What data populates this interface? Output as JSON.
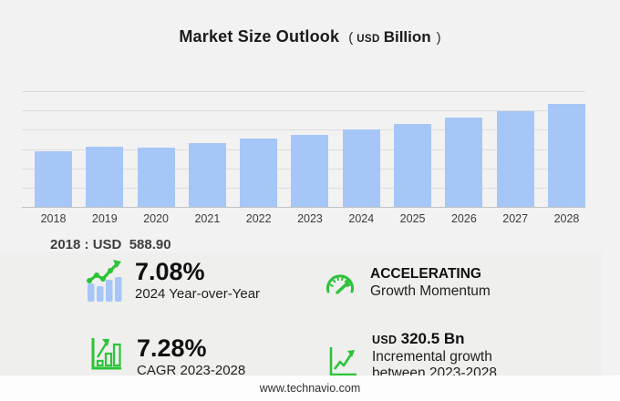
{
  "title": {
    "main": "Market Size Outlook",
    "paren_open": "(",
    "unit_small": "USD",
    "unit_big": "Billion",
    "paren_close": ")"
  },
  "chart_data": {
    "type": "bar",
    "title": "Market Size Outlook (USD Billion)",
    "categories": [
      "2018",
      "2019",
      "2020",
      "2021",
      "2022",
      "2023",
      "2024",
      "2025",
      "2026",
      "2027",
      "2028"
    ],
    "values": [
      588.9,
      632,
      624,
      669,
      718,
      762,
      816,
      874,
      938,
      1007,
      1082
    ],
    "xlabel": "",
    "ylabel": "USD Billion",
    "ylim": [
      0,
      1220
    ],
    "grid": true,
    "gridline_count": 7,
    "legend": "none",
    "bar_color": "#A7C6F8",
    "annotation": "2018 : USD  588.90"
  },
  "annotation": "2018 : USD  588.90",
  "stats": [
    {
      "value": "7.08%",
      "label": "2024 Year-over-Year",
      "icon": "bar-trend-icon"
    },
    {
      "title": "ACCELERATING",
      "label": "Growth Momentum",
      "icon": "gauge-icon"
    },
    {
      "value": "7.28%",
      "label": "CAGR 2023-2028",
      "icon": "growth-bars-icon"
    },
    {
      "title_small": "USD",
      "title_big": "320.5 Bn",
      "label_line1": "Incremental growth",
      "label_line2": "between 2023-2028",
      "icon": "line-growth-icon"
    }
  ],
  "footer": {
    "link": "www.technavio.com"
  },
  "colors": {
    "background": "#F2F2F3",
    "stats_panel": "#EFEFED",
    "bar_blue": "#A7C6F8",
    "accent_green": "#2DC339",
    "gridline": "#DDDDDD",
    "axis_line": "#C3C3C3",
    "text_dark": "#1B1B1B"
  }
}
